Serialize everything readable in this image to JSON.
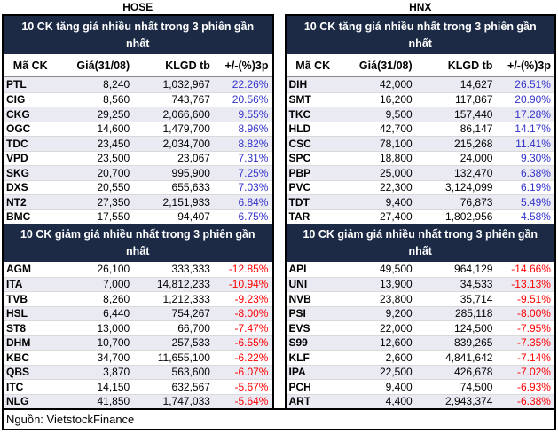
{
  "source": "Nguồn: VietstockFinance",
  "colors": {
    "title_bar_bg": "#1C2A46",
    "title_bar_text": "#FFFFFF",
    "positive_change": "#3333CC",
    "negative_change": "#FF0000",
    "shaded_row_bg": "#EAEAF3",
    "border": "#000000"
  },
  "chart_data": [
    {
      "type": "table",
      "exchange": "HOSE",
      "title": "10 CK tăng giá nhiều nhất trong 3 phiên gần nhất",
      "columns": [
        "Mã CK",
        "Giá(31/08)",
        "KLGD tb",
        "+/-(%)3p"
      ],
      "rows": [
        [
          "PTL",
          "8,240",
          "1,032,967",
          "22.26%"
        ],
        [
          "CIG",
          "8,560",
          "743,767",
          "20.56%"
        ],
        [
          "CKG",
          "29,250",
          "2,066,600",
          "9.55%"
        ],
        [
          "OGC",
          "14,600",
          "1,479,700",
          "8.96%"
        ],
        [
          "TDC",
          "23,450",
          "2,034,700",
          "8.82%"
        ],
        [
          "VPD",
          "23,500",
          "23,067",
          "7.31%"
        ],
        [
          "SKG",
          "20,700",
          "995,900",
          "7.25%"
        ],
        [
          "DXS",
          "20,550",
          "655,633",
          "7.03%"
        ],
        [
          "NT2",
          "27,350",
          "2,151,933",
          "6.84%"
        ],
        [
          "BMC",
          "17,550",
          "94,407",
          "6.75%"
        ]
      ]
    },
    {
      "type": "table",
      "exchange": "HOSE",
      "title": "10 CK giảm giá nhiều nhất trong 3 phiên gần nhất",
      "columns": [
        "Mã CK",
        "Giá(31/08)",
        "KLGD tb",
        "+/-(%)3p"
      ],
      "rows": [
        [
          "AGM",
          "26,100",
          "333,333",
          "-12.85%"
        ],
        [
          "ITA",
          "7,000",
          "14,812,233",
          "-10.94%"
        ],
        [
          "TVB",
          "8,260",
          "1,212,333",
          "-9.23%"
        ],
        [
          "HSL",
          "6,440",
          "754,267",
          "-8.00%"
        ],
        [
          "ST8",
          "13,000",
          "66,700",
          "-7.47%"
        ],
        [
          "DHM",
          "10,700",
          "257,533",
          "-6.55%"
        ],
        [
          "KBC",
          "34,700",
          "11,655,100",
          "-6.22%"
        ],
        [
          "QBS",
          "3,870",
          "563,600",
          "-6.07%"
        ],
        [
          "ITC",
          "14,150",
          "632,567",
          "-5.67%"
        ],
        [
          "NLG",
          "41,850",
          "1,747,033",
          "-5.64%"
        ]
      ]
    },
    {
      "type": "table",
      "exchange": "HNX",
      "title": "10 CK tăng giá nhiều nhất trong 3 phiên gần nhất",
      "columns": [
        "Mã CK",
        "Giá(31/08)",
        "KLGD tb",
        "+/-(%)3p"
      ],
      "rows": [
        [
          "DIH",
          "42,000",
          "14,627",
          "26.51%"
        ],
        [
          "SMT",
          "16,200",
          "117,867",
          "20.90%"
        ],
        [
          "TKC",
          "9,500",
          "157,440",
          "17.28%"
        ],
        [
          "HLD",
          "42,700",
          "86,147",
          "14.17%"
        ],
        [
          "CSC",
          "78,100",
          "215,268",
          "11.41%"
        ],
        [
          "SPC",
          "18,800",
          "24,000",
          "9.30%"
        ],
        [
          "PBP",
          "25,000",
          "132,470",
          "6.38%"
        ],
        [
          "PVC",
          "22,300",
          "3,124,099",
          "6.19%"
        ],
        [
          "TDT",
          "9,400",
          "76,873",
          "5.49%"
        ],
        [
          "TAR",
          "27,400",
          "1,802,956",
          "4.58%"
        ]
      ]
    },
    {
      "type": "table",
      "exchange": "HNX",
      "title": "10 CK giảm giá nhiều nhất trong 3 phiên gần nhất",
      "columns": [
        "Mã CK",
        "Giá(31/08)",
        "KLGD tb",
        "+/-(%)3p"
      ],
      "rows": [
        [
          "API",
          "49,500",
          "964,129",
          "-14.66%"
        ],
        [
          "UNI",
          "13,900",
          "34,533",
          "-13.13%"
        ],
        [
          "NVB",
          "23,800",
          "35,714",
          "-9.51%"
        ],
        [
          "PSI",
          "9,200",
          "285,118",
          "-8.00%"
        ],
        [
          "EVS",
          "22,000",
          "124,500",
          "-7.95%"
        ],
        [
          "S99",
          "12,600",
          "839,265",
          "-7.35%"
        ],
        [
          "KLF",
          "2,600",
          "4,841,642",
          "-7.14%"
        ],
        [
          "IPA",
          "22,500",
          "426,678",
          "-7.02%"
        ],
        [
          "PCH",
          "9,400",
          "74,500",
          "-6.93%"
        ],
        [
          "ART",
          "4,400",
          "2,943,374",
          "-6.38%"
        ]
      ]
    }
  ]
}
